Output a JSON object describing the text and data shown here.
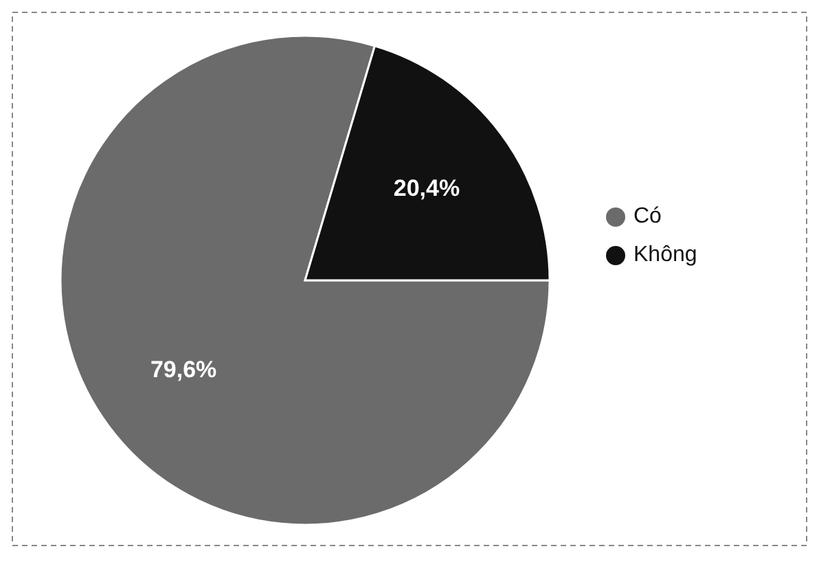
{
  "chart_data": {
    "type": "pie",
    "categories": [
      "Có",
      "Không"
    ],
    "values": [
      79.6,
      20.4
    ],
    "colors": [
      "#6b6b6b",
      "#111111"
    ],
    "value_labels": [
      "79,6%",
      "20,4%"
    ],
    "legend": "right"
  }
}
